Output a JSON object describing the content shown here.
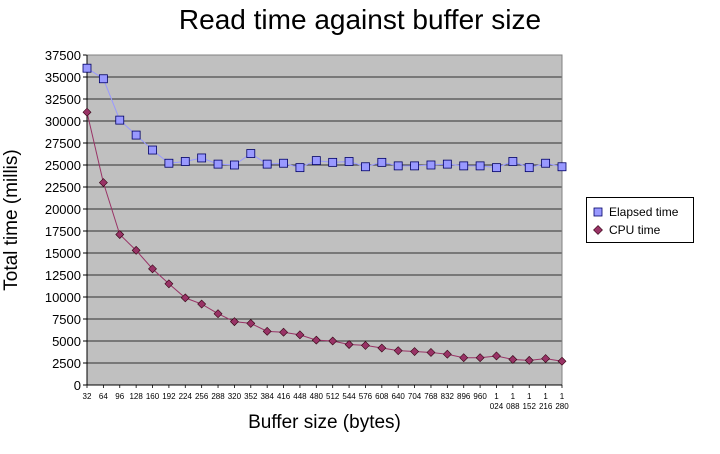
{
  "chart_data": {
    "type": "line",
    "title": "Read time against buffer size",
    "xlabel": "Buffer size (bytes)",
    "ylabel": "Total time (millis)",
    "categories": [
      "32",
      "64",
      "96",
      "128",
      "160",
      "192",
      "224",
      "256",
      "288",
      "320",
      "352",
      "384",
      "416",
      "448",
      "480",
      "512",
      "544",
      "576",
      "608",
      "640",
      "704",
      "768",
      "832",
      "896",
      "960",
      "1 024",
      "1 088",
      "1 152",
      "1 216",
      "1 280"
    ],
    "ylim": [
      0,
      37500
    ],
    "yticks": [
      "0",
      "2500",
      "5000",
      "7500",
      "10000",
      "12500",
      "15000",
      "17500",
      "20000",
      "22500",
      "25000",
      "27500",
      "30000",
      "32500",
      "35000",
      "37500"
    ],
    "grid": true,
    "legend_position": "right",
    "series": [
      {
        "name": "Elapsed time",
        "color": "#9999ff",
        "marker": "square",
        "values": [
          36000,
          34800,
          30100,
          28400,
          26700,
          25200,
          25400,
          25800,
          25100,
          25000,
          26300,
          25100,
          25200,
          24700,
          25500,
          25300,
          25400,
          24800,
          25300,
          24900,
          24900,
          25000,
          25100,
          24900,
          24900,
          24700,
          25400,
          24700,
          25200,
          24800
        ]
      },
      {
        "name": "CPU time",
        "color": "#993366",
        "marker": "diamond",
        "values": [
          31000,
          23000,
          17100,
          15300,
          13200,
          11500,
          9900,
          9200,
          8100,
          7200,
          7000,
          6100,
          6000,
          5700,
          5100,
          5000,
          4600,
          4500,
          4200,
          3900,
          3800,
          3700,
          3500,
          3100,
          3100,
          3300,
          2900,
          2800,
          3000,
          2700
        ]
      }
    ]
  }
}
